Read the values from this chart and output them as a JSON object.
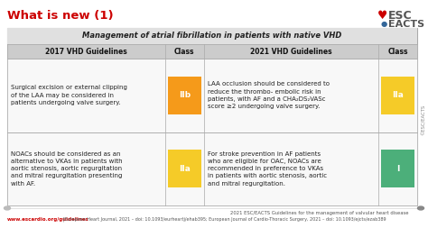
{
  "title": "What is new (1)",
  "table_title": "Management of atrial fibrillation in patients with native VHD",
  "col_headers": [
    "2017 VHD Guidelines",
    "Class",
    "2021 VHD Guidelines",
    "Class"
  ],
  "row1_col1": "Surgical excision or external clipping\nof the LAA may be considered in\npatients undergoing valve surgery.",
  "row1_col2": "IIb",
  "row1_col2_color": "#F59A1A",
  "row1_col3": "LAA occlusion should be considered to\nreduce the thrombo- embolic risk in\npatients, with AF and a CHA₂DS₂VASc\nscore ≥2 undergoing valve surgery.",
  "row1_col4": "IIa",
  "row1_col4_color": "#F5CB28",
  "row2_col1": "NOACs should be considered as an\nalternative to VKAs in patients with\naortic stenosis, aortic regurgitation\nand mitral regurgitation presenting\nwith AF.",
  "row2_col2": "IIa",
  "row2_col2_color": "#F5CB28",
  "row2_col3": "For stroke prevention in AF patients\nwho are eligible for OAC, NOACs are\nrecommended in preference to VKAs\nin patients with aortic stenosis, aortic\nand mitral regurgitation.",
  "row2_col4": "I",
  "row2_col4_color": "#4CAF7A",
  "bg_color": "#FFFFFF",
  "header_bg": "#CCCCCC",
  "title_row_bg": "#E0E0E0",
  "cell_bg": "#F8F8F8",
  "title_color": "#CC0000",
  "footer_url": "www.escardio.org/guidelines",
  "footer_text": " |European Heart Journal, 2021 – doi: 10.1093/eurheartj/ehab395; European Journal of Cardio-Thoracic Surgery, 2021 – doi: 10.1093/ejcts/ezab389",
  "footer_ref": "2021 ESC/EACTS Guidelines for the management of valvular heart disease",
  "side_text": "©ESC/EACTS",
  "esc_text": "ESC",
  "eacts_text": "EACTS"
}
